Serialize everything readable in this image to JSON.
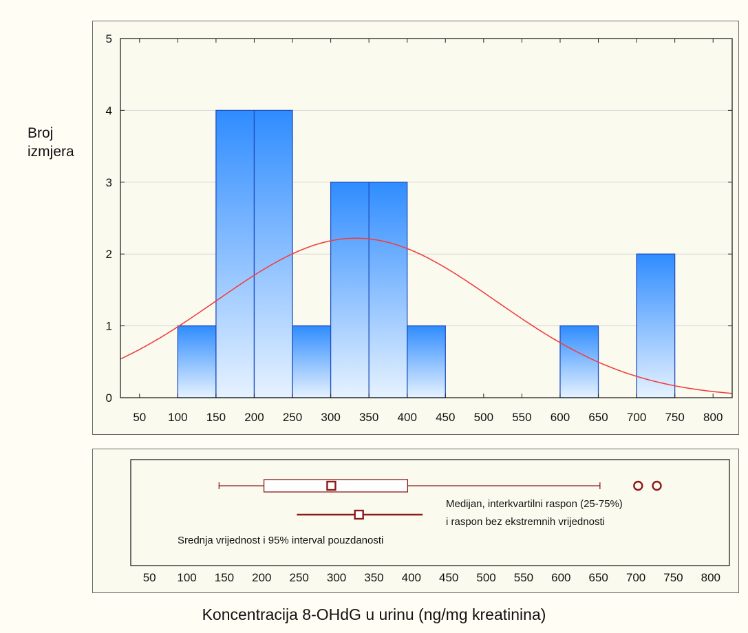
{
  "y_axis_label_line1": "Broj",
  "y_axis_label_line2": "izmjera",
  "x_axis_title": "Koncentracija 8-OHdG u urinu (ng/mg kreatinina)",
  "colors": {
    "bar_top": "#2f8cff",
    "bar_bottom": "#e6f2ff",
    "bar_stroke": "#1f4fbf",
    "curve": "#f04040",
    "box": "#8b1a1a",
    "grid": "#d6d6d6"
  },
  "chart_data": [
    {
      "type": "bar",
      "subtype": "histogram",
      "xlim": [
        25,
        825
      ],
      "ylim": [
        0,
        5
      ],
      "x_ticks": [
        50,
        100,
        150,
        200,
        250,
        300,
        350,
        400,
        450,
        500,
        550,
        600,
        650,
        700,
        750,
        800
      ],
      "y_ticks": [
        0,
        1,
        2,
        3,
        4,
        5
      ],
      "grid": "horizontal",
      "bins": [
        {
          "from": 100,
          "to": 150,
          "count": 1
        },
        {
          "from": 150,
          "to": 200,
          "count": 4
        },
        {
          "from": 200,
          "to": 250,
          "count": 4
        },
        {
          "from": 250,
          "to": 300,
          "count": 1
        },
        {
          "from": 300,
          "to": 350,
          "count": 3
        },
        {
          "from": 350,
          "to": 400,
          "count": 3
        },
        {
          "from": 400,
          "to": 450,
          "count": 1
        },
        {
          "from": 600,
          "to": 650,
          "count": 1
        },
        {
          "from": 700,
          "to": 750,
          "count": 2
        }
      ],
      "normal_curve": {
        "mean": 333,
        "peak": 2.22,
        "sd": 183
      }
    },
    {
      "type": "boxplot",
      "xlim": [
        25,
        825
      ],
      "x_ticks": [
        50,
        100,
        150,
        200,
        250,
        300,
        350,
        400,
        450,
        500,
        550,
        600,
        650,
        700,
        750,
        800
      ],
      "median": 293,
      "q1": 203,
      "q3": 395,
      "whisker_low": 143,
      "whisker_high": 652,
      "outliers": [
        703,
        728
      ],
      "mean": 330,
      "ci95": [
        247,
        415
      ],
      "annotations": {
        "box_line1": "Medijan, interkvartilni raspon (25-75%)",
        "box_line2": "i raspon bez ekstremnih vrijednosti",
        "mean_line": "Srednja vrijednost i 95% interval pouzdanosti"
      }
    }
  ]
}
